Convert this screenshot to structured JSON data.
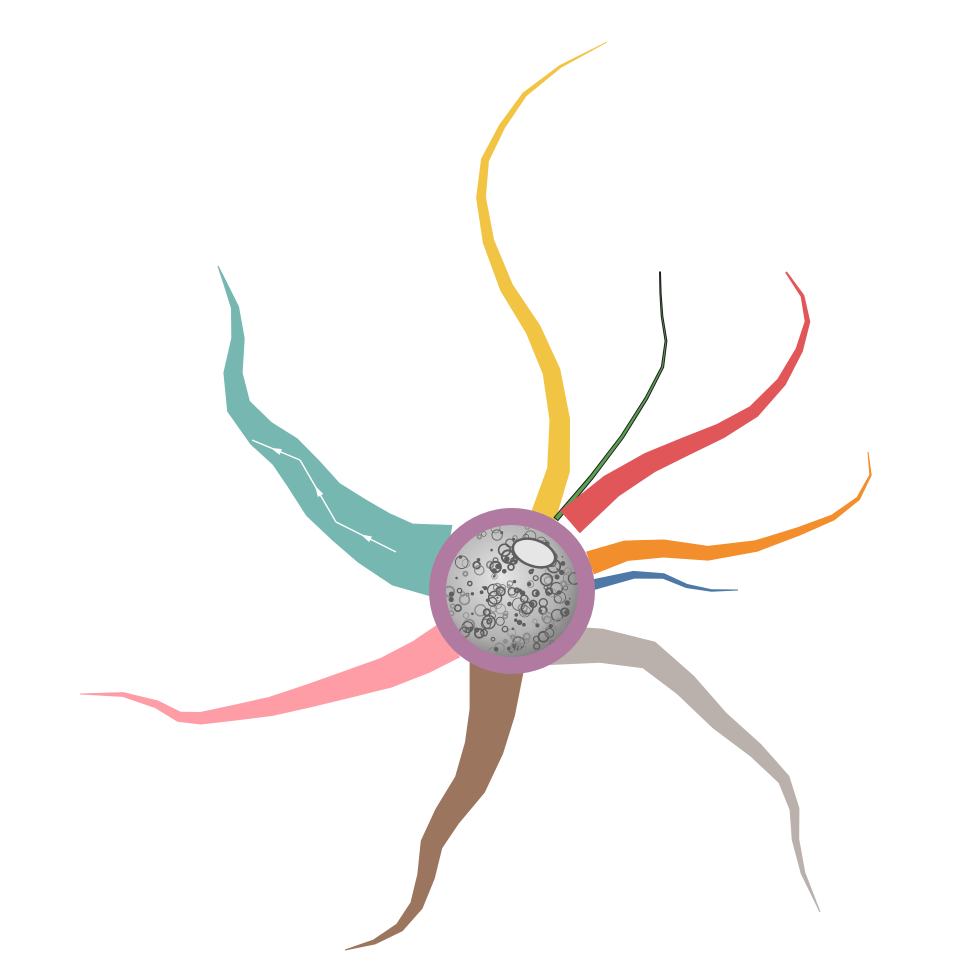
{
  "diagram": {
    "type": "radial-branch-diagram",
    "center": {
      "label": "",
      "ring_color": "#b07aa1",
      "image_tone_light": "#e6e6e6",
      "image_tone_dark": "#5e5e5e"
    },
    "branches": [
      {
        "id": "yellow",
        "color": "#f1c443"
      },
      {
        "id": "green",
        "color": "#59a14f",
        "outline": "#1f1f1f"
      },
      {
        "id": "red",
        "color": "#e15759"
      },
      {
        "id": "orange",
        "color": "#f28e2b"
      },
      {
        "id": "blue",
        "color": "#4e79a7"
      },
      {
        "id": "gray",
        "color": "#bab0ac"
      },
      {
        "id": "brown",
        "color": "#9c755f"
      },
      {
        "id": "pink",
        "color": "#ff9da7"
      },
      {
        "id": "teal",
        "color": "#76b7b2",
        "has_flow_arrows": true
      }
    ]
  }
}
